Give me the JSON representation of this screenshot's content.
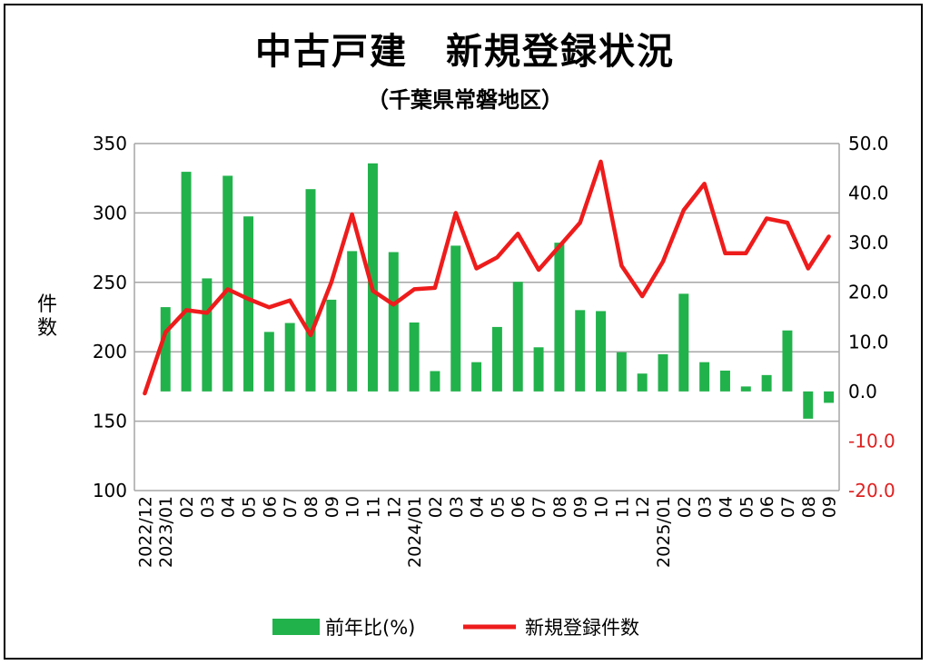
{
  "chart_data": {
    "type": "bar+line",
    "title": "中古戸建　新規登録状況",
    "subtitle": "（千葉県常磐地区）",
    "ylabel": "件数",
    "categories": [
      "2022/12",
      "2023/01",
      "02",
      "03",
      "04",
      "05",
      "06",
      "07",
      "08",
      "09",
      "10",
      "11",
      "12",
      "2024/01",
      "02",
      "03",
      "04",
      "05",
      "06",
      "07",
      "08",
      "09",
      "10",
      "11",
      "12",
      "2025/01",
      "02",
      "03",
      "04",
      "05",
      "06",
      "07",
      "08",
      "09"
    ],
    "series": [
      {
        "name": "前年比(%)",
        "type": "bar",
        "axis": "right",
        "color": "#22b24c",
        "values": [
          null,
          17.0,
          44.3,
          22.8,
          43.5,
          35.3,
          12.0,
          13.8,
          40.8,
          18.5,
          28.3,
          46.0,
          28.1,
          13.9,
          4.1,
          29.4,
          5.9,
          13.0,
          22.1,
          8.9,
          30.0,
          16.4,
          16.2,
          7.9,
          3.6,
          7.5,
          19.7,
          5.9,
          4.2,
          1.0,
          3.3,
          12.3,
          -5.5,
          -2.3
        ]
      },
      {
        "name": "新規登録件数",
        "type": "line",
        "axis": "left",
        "color": "#ee1c1c",
        "values": [
          170,
          214,
          230,
          228,
          245,
          238,
          232,
          237,
          212,
          250,
          299,
          244,
          234,
          245,
          246,
          300,
          260,
          268,
          285,
          259,
          276,
          293,
          337,
          262,
          240,
          265,
          302,
          321,
          271,
          271,
          296,
          293,
          260,
          283
        ]
      }
    ],
    "y_left": {
      "min": 100,
      "max": 350,
      "step": 50,
      "ticks": [
        "350",
        "300",
        "250",
        "200",
        "150",
        "100"
      ]
    },
    "y_right": {
      "min": -20,
      "max": 50,
      "step": 10,
      "ticks": [
        "50.0",
        "40.0",
        "30.0",
        "20.0",
        "10.0",
        "0.0",
        "-10.0",
        "-20.0"
      ],
      "negative_color": "#e02020"
    },
    "grid": true,
    "legend": "bottom"
  }
}
